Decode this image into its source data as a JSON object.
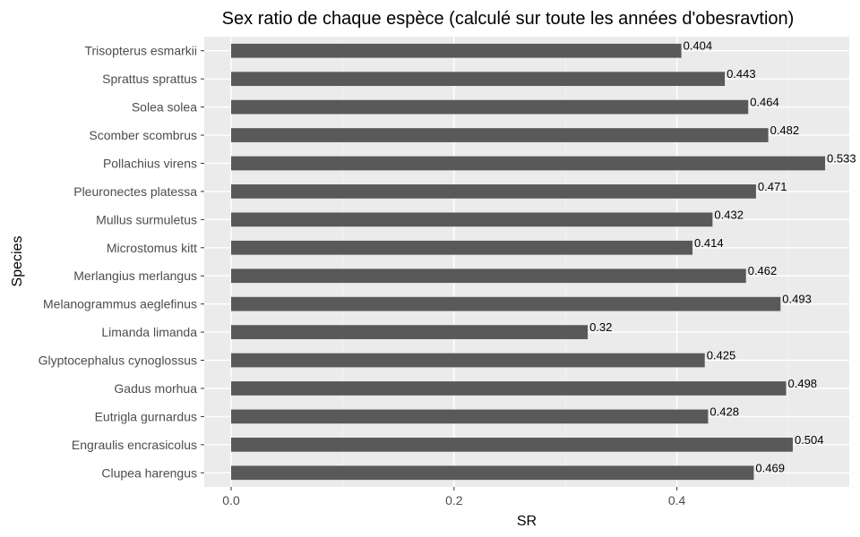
{
  "chart_data": {
    "type": "bar",
    "orientation": "horizontal",
    "title": "Sex ratio de chaque espèce (calculé sur toute les années d'obesravtion)",
    "xlabel": "SR",
    "ylabel": "Species",
    "xlim": [
      0,
      0.55
    ],
    "xticks": [
      0.0,
      0.2,
      0.4
    ],
    "xtick_labels": [
      "0.0",
      "0.2",
      "0.4"
    ],
    "grid": true,
    "categories": [
      "Trisopterus esmarkii",
      "Sprattus sprattus",
      "Solea solea",
      "Scomber scombrus",
      "Pollachius virens",
      "Pleuronectes platessa",
      "Mullus surmuletus",
      "Microstomus kitt",
      "Merlangius merlangus",
      "Melanogrammus aeglefinus",
      "Limanda limanda",
      "Glyptocephalus cynoglossus",
      "Gadus morhua",
      "Eutrigla gurnardus",
      "Engraulis encrasicolus",
      "Clupea harengus"
    ],
    "values": [
      0.404,
      0.443,
      0.464,
      0.482,
      0.533,
      0.471,
      0.432,
      0.414,
      0.462,
      0.493,
      0.32,
      0.425,
      0.498,
      0.428,
      0.504,
      0.469
    ],
    "value_labels": [
      "0.404",
      "0.443",
      "0.464",
      "0.482",
      "0.533",
      "0.471",
      "0.432",
      "0.414",
      "0.462",
      "0.493",
      "0.32",
      "0.425",
      "0.498",
      "0.428",
      "0.504",
      "0.469"
    ],
    "colors": {
      "bar": "#595959",
      "panel": "#ebebeb",
      "grid_major": "#ffffff",
      "grid_minor": "#f5f5f5"
    }
  }
}
